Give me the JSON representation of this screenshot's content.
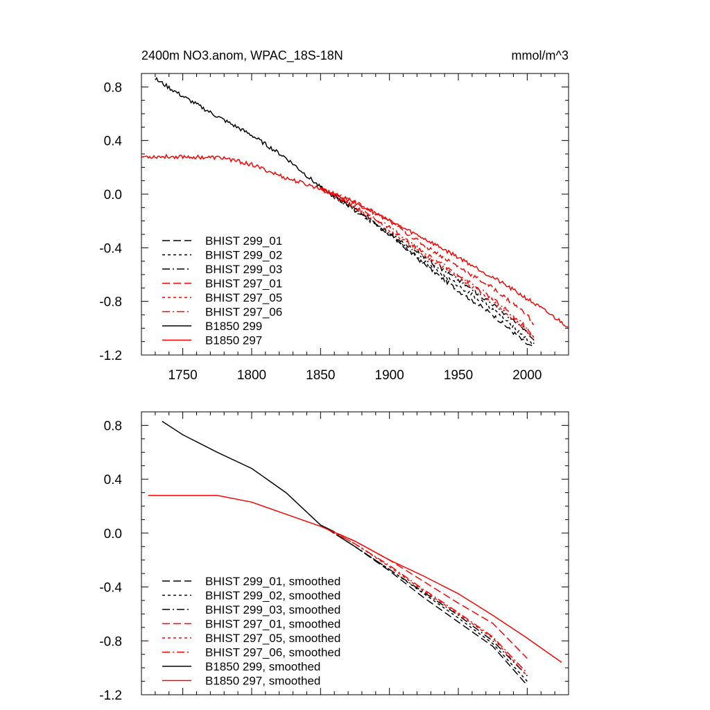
{
  "chart_data": [
    {
      "type": "line",
      "title": "2400m NO3.anom, WPAC_18S-18N",
      "units": "mmol/m^3",
      "xlim": [
        1720,
        2030
      ],
      "ylim": [
        -1.2,
        0.9
      ],
      "xticks": [
        {
          "value": 1750,
          "label": "1750"
        },
        {
          "value": 1800,
          "label": "1800"
        },
        {
          "value": 1850,
          "label": "1850"
        },
        {
          "value": 1900,
          "label": "1900"
        },
        {
          "value": 1950,
          "label": "1950"
        },
        {
          "value": 2000,
          "label": "2000"
        }
      ],
      "yticks": [
        {
          "value": 0.8,
          "label": "0.8"
        },
        {
          "value": 0.4,
          "label": "0.4"
        },
        {
          "value": 0.0,
          "label": "0.0"
        },
        {
          "value": -0.4,
          "label": "-0.4"
        },
        {
          "value": -0.8,
          "label": "-0.8"
        },
        {
          "value": -1.2,
          "label": "-1.2"
        }
      ],
      "legend_position": "lower-left",
      "series": [
        {
          "name": "BHIST 299_01",
          "color": "#000000",
          "dash": "dashed",
          "noisy": true,
          "x": [
            1850,
            1875,
            1900,
            1925,
            1950,
            1975,
            2000,
            2005
          ],
          "y": [
            0.05,
            -0.1,
            -0.3,
            -0.52,
            -0.72,
            -0.9,
            -1.12,
            -1.15
          ]
        },
        {
          "name": "BHIST 299_02",
          "color": "#000000",
          "dash": "dotted",
          "noisy": true,
          "x": [
            1850,
            1875,
            1900,
            1925,
            1950,
            1975,
            2000,
            2005
          ],
          "y": [
            0.05,
            -0.12,
            -0.3,
            -0.5,
            -0.68,
            -0.86,
            -1.08,
            -1.12
          ]
        },
        {
          "name": "BHIST 299_03",
          "color": "#000000",
          "dash": "dashdot",
          "noisy": true,
          "x": [
            1850,
            1875,
            1900,
            1925,
            1950,
            1975,
            2000,
            2005
          ],
          "y": [
            0.05,
            -0.12,
            -0.29,
            -0.47,
            -0.64,
            -0.82,
            -1.03,
            -1.1
          ]
        },
        {
          "name": "BHIST 297_01",
          "color": "#ff0000",
          "dash": "dashed",
          "noisy": true,
          "x": [
            1850,
            1875,
            1900,
            1925,
            1950,
            1975,
            2000,
            2005
          ],
          "y": [
            0.04,
            -0.06,
            -0.2,
            -0.38,
            -0.54,
            -0.7,
            -0.9,
            -0.98
          ]
        },
        {
          "name": "BHIST 297_05",
          "color": "#ff0000",
          "dash": "dotted",
          "noisy": true,
          "x": [
            1850,
            1875,
            1900,
            1925,
            1950,
            1975,
            2000,
            2005
          ],
          "y": [
            0.04,
            -0.1,
            -0.27,
            -0.45,
            -0.62,
            -0.8,
            -1.02,
            -1.08
          ]
        },
        {
          "name": "BHIST 297_06",
          "color": "#ff0000",
          "dash": "dashdot",
          "noisy": true,
          "x": [
            1850,
            1875,
            1900,
            1925,
            1950,
            1975,
            2000,
            2005
          ],
          "y": [
            0.05,
            -0.09,
            -0.25,
            -0.44,
            -0.6,
            -0.78,
            -1.0,
            -1.1
          ]
        },
        {
          "name": "B1850 299",
          "color": "#000000",
          "dash": "solid",
          "noisy": true,
          "x": [
            1730,
            1750,
            1775,
            1800,
            1825,
            1850
          ],
          "y": [
            0.86,
            0.73,
            0.58,
            0.44,
            0.27,
            0.05
          ]
        },
        {
          "name": "B1850 297",
          "color": "#ff0000",
          "dash": "solid",
          "noisy": true,
          "x": [
            1720,
            1750,
            1780,
            1800,
            1825,
            1850,
            1875,
            1900,
            1925,
            1950,
            1975,
            2000,
            2030
          ],
          "y": [
            0.28,
            0.28,
            0.27,
            0.22,
            0.12,
            0.04,
            -0.06,
            -0.2,
            -0.33,
            -0.47,
            -0.62,
            -0.78,
            -0.99
          ]
        }
      ]
    },
    {
      "type": "line",
      "title": "",
      "units": "",
      "xlim": [
        1720,
        2030
      ],
      "ylim": [
        -1.2,
        0.9
      ],
      "xticks": [
        {
          "value": 1750,
          "label": ""
        },
        {
          "value": 1800,
          "label": ""
        },
        {
          "value": 1850,
          "label": ""
        },
        {
          "value": 1900,
          "label": ""
        },
        {
          "value": 1950,
          "label": ""
        },
        {
          "value": 2000,
          "label": ""
        }
      ],
      "yticks": [
        {
          "value": 0.8,
          "label": "0.8"
        },
        {
          "value": 0.4,
          "label": "0.4"
        },
        {
          "value": 0.0,
          "label": "0.0"
        },
        {
          "value": -0.4,
          "label": "-0.4"
        },
        {
          "value": -0.8,
          "label": "-0.8"
        },
        {
          "value": -1.2,
          "label": "-1.2"
        }
      ],
      "legend_position": "lower-left",
      "series": [
        {
          "name": "BHIST 299_01, smoothed",
          "color": "#000000",
          "dash": "dashed",
          "noisy": false,
          "x": [
            1855,
            1875,
            1900,
            1925,
            1950,
            1975,
            2000
          ],
          "y": [
            0.03,
            -0.1,
            -0.28,
            -0.48,
            -0.66,
            -0.84,
            -1.13
          ]
        },
        {
          "name": "BHIST 299_02, smoothed",
          "color": "#000000",
          "dash": "dotted",
          "noisy": false,
          "x": [
            1855,
            1875,
            1900,
            1925,
            1950,
            1975,
            2000
          ],
          "y": [
            0.03,
            -0.1,
            -0.27,
            -0.45,
            -0.63,
            -0.82,
            -1.1
          ]
        },
        {
          "name": "BHIST 299_03, smoothed",
          "color": "#000000",
          "dash": "dashdot",
          "noisy": false,
          "x": [
            1855,
            1875,
            1900,
            1925,
            1950,
            1975,
            2000
          ],
          "y": [
            0.03,
            -0.1,
            -0.27,
            -0.44,
            -0.61,
            -0.8,
            -1.06
          ]
        },
        {
          "name": "BHIST 297_01, smoothed",
          "color": "#ff0000",
          "dash": "dashed",
          "noisy": false,
          "x": [
            1855,
            1875,
            1900,
            1925,
            1950,
            1975,
            2000
          ],
          "y": [
            0.03,
            -0.06,
            -0.2,
            -0.36,
            -0.52,
            -0.67,
            -0.93
          ]
        },
        {
          "name": "BHIST 297_05, smoothed",
          "color": "#ff0000",
          "dash": "dotted",
          "noisy": false,
          "x": [
            1855,
            1875,
            1900,
            1925,
            1950,
            1975,
            2000
          ],
          "y": [
            0.03,
            -0.08,
            -0.25,
            -0.43,
            -0.6,
            -0.78,
            -1.06
          ]
        },
        {
          "name": "BHIST 297_06, smoothed",
          "color": "#ff0000",
          "dash": "dashdot",
          "noisy": false,
          "x": [
            1855,
            1875,
            1900,
            1925,
            1950,
            1975,
            2000
          ],
          "y": [
            0.03,
            -0.08,
            -0.24,
            -0.42,
            -0.59,
            -0.77,
            -1.04
          ]
        },
        {
          "name": "B1850 299, smoothed",
          "color": "#000000",
          "dash": "solid",
          "noisy": false,
          "x": [
            1735,
            1750,
            1775,
            1800,
            1825,
            1850,
            1860
          ],
          "y": [
            0.83,
            0.73,
            0.6,
            0.48,
            0.3,
            0.06,
            0.01
          ]
        },
        {
          "name": "B1850 297, smoothed",
          "color": "#ff0000",
          "dash": "solid",
          "noisy": false,
          "x": [
            1725,
            1750,
            1775,
            1800,
            1825,
            1850,
            1875,
            1900,
            1925,
            1950,
            1975,
            2000,
            2025
          ],
          "y": [
            0.28,
            0.28,
            0.28,
            0.23,
            0.14,
            0.05,
            -0.06,
            -0.2,
            -0.32,
            -0.45,
            -0.61,
            -0.78,
            -0.96
          ]
        }
      ]
    }
  ]
}
